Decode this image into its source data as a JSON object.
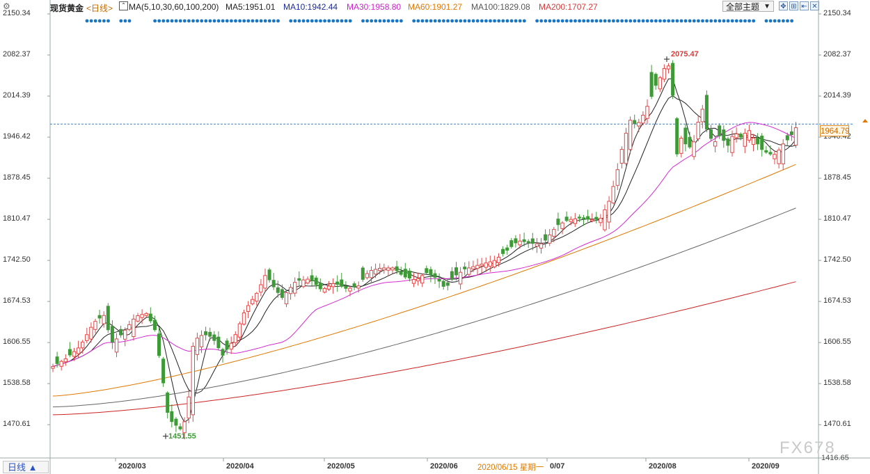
{
  "toolbar": {
    "symbol": "现货黄金",
    "period": "<日线>",
    "ma_label": "MA(5,10,30,60,100,200)",
    "ma5": "MA5:1951.01",
    "ma10": "MA10:1942.44",
    "ma30": "MA30:1958.80",
    "ma60": "MA60:1901.27",
    "ma100": "MA100:1829.08",
    "ma200": "MA200:1707.27",
    "theme_dropdown": "全部主题",
    "tool_icons": [
      "move-icon",
      "zoom-icon",
      "first-icon",
      "close-icon"
    ]
  },
  "axis": {
    "left_labels": [
      "2150.34",
      "2082.37",
      "2014.39",
      "1946.42",
      "1878.45",
      "1810.47",
      "1742.50",
      "1674.53",
      "1606.55",
      "1538.58",
      "1470.61"
    ],
    "right_labels": [
      "2150.34",
      "2082.37",
      "2014.39",
      "1946.42",
      "1878.45",
      "1810.47",
      "1742.50",
      "1674.53",
      "1606.55",
      "1538.58",
      "1470.61"
    ],
    "right_low": "1416.65",
    "x_labels": [
      "2020/03",
      "2020/04",
      "2020/05",
      "2020/06",
      "0/07",
      "2020/08",
      "2020/09"
    ]
  },
  "current_price": "1964.79",
  "annotations": {
    "high": "2075.47",
    "low": "1451.55"
  },
  "cursor_date": "2020/06/15 星期一",
  "bottom_tab": "日线 ▲",
  "watermark": "FX678",
  "colors": {
    "up": "#e04848",
    "down": "#3d9a37",
    "ma5": "#222222",
    "ma10": "#222222",
    "ma30": "#d62ad2",
    "ma60": "#e07800",
    "ma100": "#666666",
    "ma200": "#cc2222",
    "blue_dots": "#1976c5",
    "high_label": "#d63a3a",
    "low_label": "#3d9a37"
  },
  "chart_data": {
    "type": "candlestick",
    "title": "现货黄金",
    "ylim": [
      1416.65,
      2150.34
    ],
    "ma": {
      "ma5": 1951.01,
      "ma10": 1942.44,
      "ma30": 1958.8,
      "ma60": 1901.27,
      "ma100": 1829.08,
      "ma200": 1707.27
    },
    "high_close": 2075.47,
    "low_close": 1451.55,
    "last_price": 1964.79,
    "months": [
      "2020/03",
      "2020/04",
      "2020/05",
      "2020/06",
      "2020/07",
      "2020/08",
      "2020/09"
    ]
  }
}
